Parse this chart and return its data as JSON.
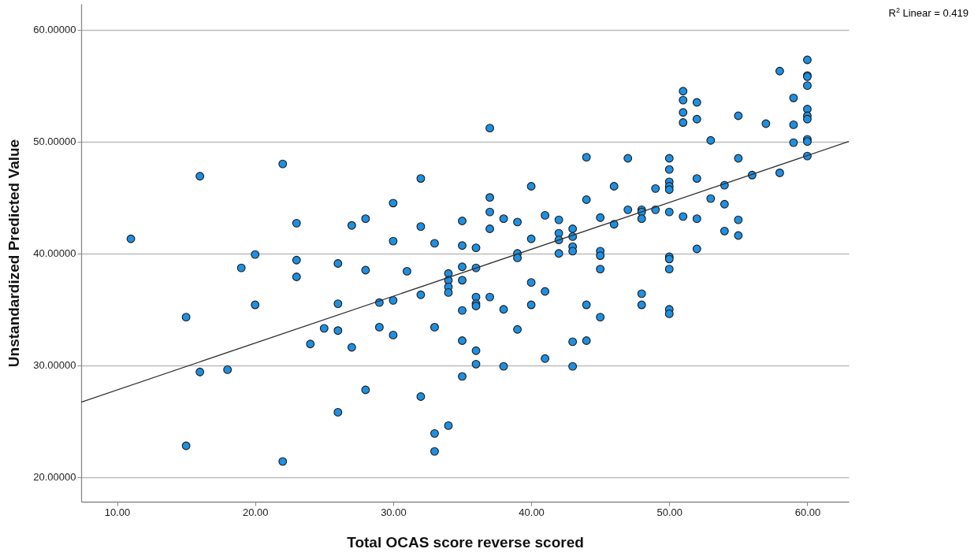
{
  "chart_data": {
    "type": "scatter",
    "xlabel": "Total OCAS score reverse scored",
    "ylabel": "Unstandardized Predicted Value",
    "annotations": [
      "R$^{2}$ Linear = 0.419"
    ],
    "xlim": [
      7.4,
      63.0
    ],
    "ylim": [
      17.8,
      62.3
    ],
    "xticks": [
      {
        "value": 10,
        "label": "10.00"
      },
      {
        "value": 20,
        "label": "20.00"
      },
      {
        "value": 30,
        "label": "30.00"
      },
      {
        "value": 40,
        "label": "40.00"
      },
      {
        "value": 50,
        "label": "50.00"
      },
      {
        "value": 60,
        "label": "60.00"
      }
    ],
    "yticks": [
      {
        "value": 20,
        "label": "20.00000"
      },
      {
        "value": 30,
        "label": "30.00000"
      },
      {
        "value": 40,
        "label": "40.00000"
      },
      {
        "value": 50,
        "label": "50.00000"
      },
      {
        "value": 60,
        "label": "60.00000"
      }
    ],
    "grid": "y",
    "series": [
      {
        "color": "#1e8fe1",
        "marker": "circle",
        "x": [
          11,
          15,
          15,
          16,
          16,
          18,
          19,
          20,
          20,
          22,
          22,
          23,
          23,
          23,
          24,
          25,
          26,
          26,
          26,
          26,
          27,
          27,
          28,
          28,
          28,
          29,
          29,
          30,
          30,
          30,
          30,
          31,
          32,
          32,
          32,
          32,
          33,
          33,
          33,
          33,
          34,
          34,
          34,
          34,
          34,
          35,
          35,
          35,
          35,
          35,
          35,
          35,
          36,
          36,
          36,
          36,
          36,
          36,
          36,
          37,
          37,
          37,
          37,
          37,
          38,
          38,
          38,
          39,
          39,
          39,
          39,
          40,
          40,
          40,
          40,
          41,
          41,
          41,
          42,
          42,
          42,
          42,
          43,
          43,
          43,
          43,
          43,
          43,
          44,
          44,
          44,
          44,
          45,
          45,
          45,
          45,
          45,
          46,
          46,
          47,
          47,
          48,
          48,
          48,
          48,
          48,
          49,
          49,
          50,
          50,
          50,
          50,
          50,
          50,
          50,
          50,
          50,
          50,
          50,
          51,
          51,
          51,
          51,
          51,
          52,
          52,
          52,
          52,
          52,
          53,
          53,
          54,
          54,
          54,
          55,
          55,
          55,
          55,
          56,
          57,
          58,
          58,
          59,
          59,
          59,
          60,
          60,
          60,
          60,
          60,
          60,
          60,
          60,
          60,
          60
        ],
        "values": [
          41.3,
          34.3,
          22.8,
          46.9,
          29.4,
          29.6,
          38.7,
          39.9,
          35.4,
          48.0,
          21.4,
          42.7,
          39.4,
          37.9,
          31.9,
          33.3,
          39.1,
          35.5,
          33.1,
          25.8,
          42.5,
          31.6,
          43.1,
          38.5,
          27.8,
          35.6,
          33.4,
          44.5,
          41.1,
          35.8,
          32.7,
          38.4,
          46.7,
          42.4,
          36.3,
          27.2,
          40.9,
          33.4,
          23.9,
          22.3,
          38.2,
          37.6,
          37.0,
          36.5,
          24.6,
          42.9,
          40.7,
          38.8,
          37.6,
          34.9,
          32.2,
          29.0,
          40.5,
          38.7,
          36.1,
          35.5,
          35.3,
          31.3,
          30.1,
          51.2,
          45.0,
          43.7,
          42.2,
          36.1,
          43.1,
          35.0,
          29.9,
          42.8,
          40.0,
          39.6,
          33.2,
          46.0,
          41.3,
          37.4,
          35.4,
          43.4,
          36.6,
          30.6,
          43.0,
          41.8,
          41.2,
          40.0,
          42.2,
          41.5,
          40.6,
          40.2,
          32.1,
          29.9,
          48.6,
          44.8,
          35.4,
          32.2,
          43.2,
          40.2,
          39.8,
          38.6,
          34.3,
          46.0,
          42.6,
          48.5,
          43.9,
          43.9,
          43.7,
          43.1,
          36.4,
          35.4,
          45.8,
          43.9,
          48.5,
          47.5,
          46.4,
          46.0,
          45.7,
          43.7,
          39.7,
          39.5,
          38.6,
          35.0,
          34.6,
          54.5,
          53.7,
          52.6,
          51.7,
          43.3,
          53.5,
          52.0,
          46.7,
          43.1,
          40.4,
          50.1,
          44.9,
          46.1,
          44.4,
          42.0,
          52.3,
          48.5,
          43.0,
          41.6,
          47.0,
          51.6,
          56.3,
          47.2,
          53.9,
          51.5,
          49.9,
          57.3,
          55.9,
          55.8,
          55.0,
          52.9,
          52.3,
          52.0,
          50.2,
          50.0,
          48.7
        ]
      },
      {
        "type": "line",
        "color": "#333333",
        "x": [
          7.4,
          63.0
        ],
        "values": [
          26.7,
          50.0
        ]
      }
    ]
  }
}
